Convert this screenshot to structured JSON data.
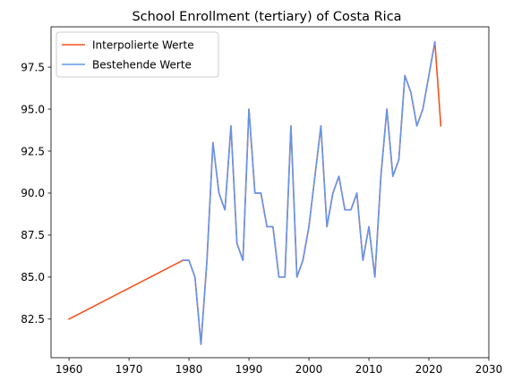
{
  "chart_data": {
    "type": "line",
    "title": "School Enrollment (tertiary) of Costa Rica",
    "xlabel": "",
    "ylabel": "",
    "xlim": [
      1957,
      2030
    ],
    "ylim": [
      80.2,
      99.9
    ],
    "xticks": [
      1960,
      1970,
      1980,
      1990,
      2000,
      2010,
      2020,
      2030
    ],
    "yticks": [
      82.5,
      85.0,
      87.5,
      90.0,
      92.5,
      95.0,
      97.5
    ],
    "grid": false,
    "legend_position": "upper-left",
    "series": [
      {
        "name": "Interpolierte Werte",
        "color": "#F4511E",
        "x": [
          1960,
          1979,
          1980,
          1981,
          1982,
          1983,
          1984,
          1985,
          1986,
          1987,
          1988,
          1989,
          1990,
          1991,
          1992,
          1993,
          1994,
          1995,
          1996,
          1997,
          1998,
          1999,
          2000,
          2001,
          2002,
          2003,
          2004,
          2005,
          2006,
          2007,
          2008,
          2009,
          2010,
          2011,
          2012,
          2013,
          2014,
          2015,
          2016,
          2017,
          2018,
          2019,
          2020,
          2021,
          2022
        ],
        "y": [
          82.5,
          86,
          86,
          85,
          81,
          86,
          93,
          90,
          89,
          94,
          87,
          86,
          95,
          90,
          90,
          88,
          88,
          85,
          85,
          94,
          85,
          86,
          88,
          91,
          94,
          88,
          90,
          91,
          89,
          89,
          90,
          86,
          88,
          85,
          91,
          95,
          91,
          92,
          97,
          96,
          94,
          95,
          97,
          99,
          94
        ]
      },
      {
        "name": "Bestehende Werte",
        "color": "#6495ED",
        "x": [
          1979,
          1980,
          1981,
          1982,
          1983,
          1984,
          1985,
          1986,
          1987,
          1988,
          1989,
          1990,
          1991,
          1992,
          1993,
          1994,
          1995,
          1996,
          1997,
          1998,
          1999,
          2000,
          2001,
          2002,
          2003,
          2004,
          2005,
          2006,
          2007,
          2008,
          2009,
          2010,
          2011,
          2012,
          2013,
          2014,
          2015,
          2016,
          2017,
          2018,
          2019,
          2020,
          2021
        ],
        "y": [
          86,
          86,
          85,
          81,
          86,
          93,
          90,
          89,
          94,
          87,
          86,
          95,
          90,
          90,
          88,
          88,
          85,
          85,
          94,
          85,
          86,
          88,
          91,
          94,
          88,
          90,
          91,
          89,
          89,
          90,
          86,
          88,
          85,
          91,
          95,
          91,
          92,
          97,
          96,
          94,
          95,
          97,
          99
        ]
      }
    ]
  }
}
